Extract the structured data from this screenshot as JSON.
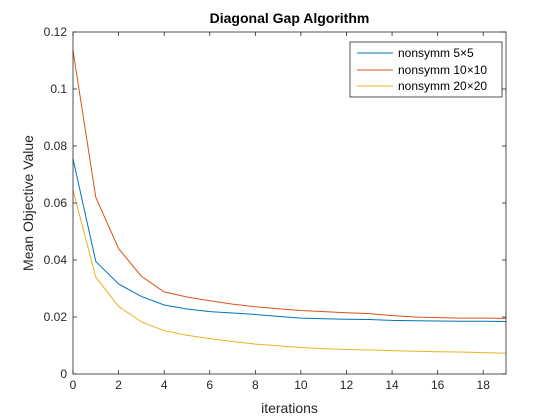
{
  "chart_data": {
    "type": "line",
    "title": "Diagonal Gap Algorithm",
    "xlabel": "iterations",
    "ylabel": "Mean Objective Value",
    "xlim": [
      0,
      19
    ],
    "ylim": [
      0,
      0.12
    ],
    "xticks": [
      0,
      2,
      4,
      6,
      8,
      10,
      12,
      14,
      16,
      18
    ],
    "xtick_labels": [
      "0",
      "2",
      "4",
      "6",
      "8",
      "10",
      "12",
      "14",
      "16",
      "18"
    ],
    "yticks": [
      0,
      0.02,
      0.04,
      0.06,
      0.08,
      0.1,
      0.12
    ],
    "ytick_labels": [
      "0",
      "0.02",
      "0.04",
      "0.06",
      "0.08",
      "0.1",
      "0.12"
    ],
    "legend_position": "top-right",
    "x": [
      0,
      1,
      2,
      3,
      4,
      5,
      6,
      7,
      8,
      9,
      10,
      11,
      12,
      13,
      14,
      15,
      16,
      17,
      18,
      19
    ],
    "series": [
      {
        "name": "nonsymm 5×5",
        "color": "#0072BD",
        "values": [
          0.0755,
          0.0395,
          0.0316,
          0.0272,
          0.0242,
          0.0228,
          0.0219,
          0.0214,
          0.0209,
          0.0202,
          0.0196,
          0.0194,
          0.0192,
          0.0191,
          0.0188,
          0.0187,
          0.0186,
          0.0185,
          0.0185,
          0.0184
        ]
      },
      {
        "name": "nonsymm 10×10",
        "color": "#D95319",
        "values": [
          0.1135,
          0.062,
          0.044,
          0.0343,
          0.0288,
          0.027,
          0.0257,
          0.0245,
          0.0236,
          0.0229,
          0.0223,
          0.0219,
          0.0215,
          0.0212,
          0.0205,
          0.02,
          0.0198,
          0.0196,
          0.0196,
          0.0195
        ]
      },
      {
        "name": "nonsymm 20×20",
        "color": "#EDB120",
        "values": [
          0.0645,
          0.034,
          0.0237,
          0.0183,
          0.0152,
          0.0136,
          0.0124,
          0.0114,
          0.0105,
          0.0099,
          0.0093,
          0.0089,
          0.0086,
          0.0084,
          0.0082,
          0.008,
          0.0078,
          0.0077,
          0.0075,
          0.0073
        ]
      }
    ]
  }
}
